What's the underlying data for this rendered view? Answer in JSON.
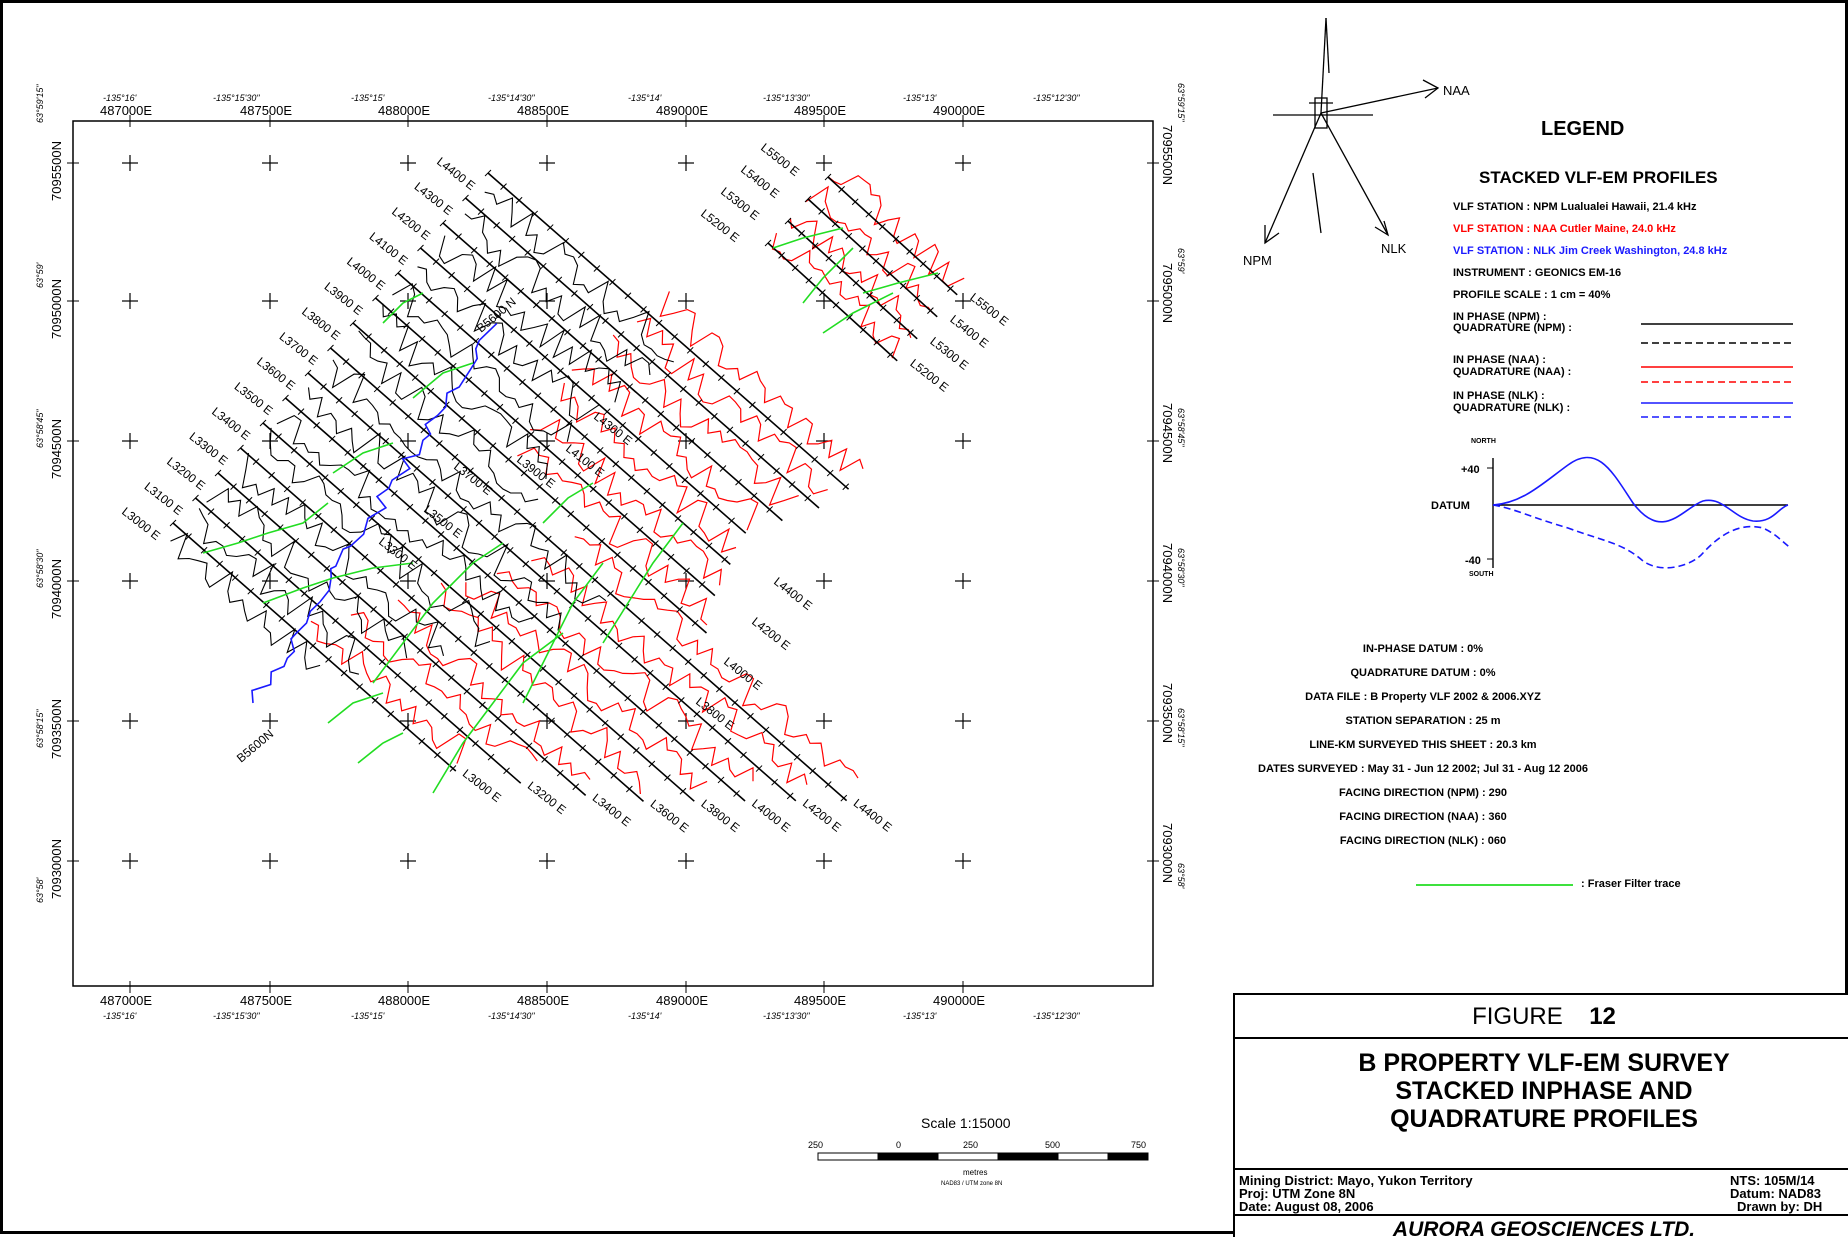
{
  "map": {
    "top_eastings": [
      "487000E",
      "487500E",
      "488000E",
      "488500E",
      "489000E",
      "489500E",
      "490000E"
    ],
    "bottom_eastings": [
      "487000E",
      "487500E",
      "488000E",
      "488500E",
      "489000E",
      "489500E",
      "490000E"
    ],
    "top_longitudes": [
      "-135°16'",
      "-135°15'30\"",
      "-135°15'",
      "-135°14'30\"",
      "-135°14'",
      "-135°13'30\"",
      "-135°13'",
      "-135°12'30\""
    ],
    "bottom_longitudes": [
      "-135°16'",
      "-135°15'30\"",
      "-135°15'",
      "-135°14'30\"",
      "-135°14'",
      "-135°13'30\"",
      "-135°13'",
      "-135°12'30\""
    ],
    "northings": [
      "7095500N",
      "7095000N",
      "7094500N",
      "7094000N",
      "7093500N",
      "7093000N"
    ],
    "left_latitudes": [
      "63°59'15\"",
      "63°59'",
      "63°58'45\"",
      "63°58'30\"",
      "63°58'15\"",
      "63°58'"
    ],
    "right_latitudes": [
      "63°59'15\"",
      "63°59'",
      "63°58'45\"",
      "63°58'30\"",
      "63°58'15\"",
      "63°58'"
    ],
    "main_lines": [
      {
        "start": "L3000 E",
        "end": "L3000 E"
      },
      {
        "start": "L3100 E",
        "end": "L3200 E"
      },
      {
        "start": "L3200 E",
        "end": "L3400 E"
      },
      {
        "start": "L3300 E",
        "end": "L3600 E"
      },
      {
        "start": "L3400 E",
        "end": "L3800 E"
      },
      {
        "start": "L3500 E",
        "end": "L4000 E"
      },
      {
        "start": "L3600 E",
        "end": "L4200 E"
      },
      {
        "start": "L3700 E",
        "end": "L4400 E"
      },
      {
        "start": "L3800 E",
        "end": ""
      },
      {
        "start": "L3900 E",
        "end": ""
      },
      {
        "start": "L4000 E",
        "end": ""
      },
      {
        "start": "L4100 E",
        "end": ""
      },
      {
        "start": "L4200 E",
        "end": ""
      },
      {
        "start": "L4300 E",
        "end": ""
      },
      {
        "start": "L4400 E",
        "end": ""
      }
    ],
    "ne_lines": [
      {
        "start": "L5200 E",
        "end": "L5200 E"
      },
      {
        "start": "L5300 E",
        "end": "L5300 E"
      },
      {
        "start": "L5400 E",
        "end": "L5400 E"
      },
      {
        "start": "L5500 E",
        "end": "L5500 E"
      }
    ],
    "inner_labels": [
      "L4300 E",
      "L4100 E",
      "L3900 E",
      "L3700 E",
      "L3500 E",
      "L3300 E"
    ],
    "baseline_top": "B5600 N",
    "baseline_bottom": "B5600N",
    "station_tag": "5500 N"
  },
  "north_arrow": {
    "naa": "NAA",
    "npm": "NPM",
    "nlk": "NLK"
  },
  "legend": {
    "title": "LEGEND",
    "subtitle": "STACKED VLF-EM PROFILES",
    "vlf_npm": "VLF STATION : NPM Lualualei Hawaii, 21.4 kHz",
    "vlf_naa": "VLF STATION : NAA Cutler Maine, 24.0 kHz",
    "vlf_nlk": "VLF STATION : NLK Jim Creek Washington, 24.8 kHz",
    "instrument": "INSTRUMENT : GEONICS EM-16",
    "profile_scale": "PROFILE SCALE : 1 cm = 40%",
    "ip_npm": "IN PHASE (NPM) :",
    "qd_npm": "QUADRATURE (NPM) :",
    "ip_naa": "IN PHASE (NAA) :",
    "qd_naa": "QUADRATURE (NAA) :",
    "ip_nlk": "IN PHASE (NLK) :",
    "qd_nlk": "QUADRATURE (NLK) :",
    "north": "NORTH",
    "south": "SOUTH",
    "plus40": "+40",
    "minus40": "-40",
    "datum": "DATUM",
    "colors": {
      "npm": "#000000",
      "naa": "#ff0000",
      "nlk": "#1a1aff",
      "fraser": "#22dd22"
    }
  },
  "info": [
    "IN-PHASE DATUM : 0%",
    "QUADRATURE DATUM : 0%",
    "DATA FILE : B Property VLF 2002 & 2006.XYZ",
    "STATION SEPARATION : 25 m",
    "LINE-KM SURVEYED THIS SHEET : 20.3 km",
    "DATES SURVEYED : May 31 - Jun 12 2002; Jul 31 - Aug 12 2006",
    "FACING DIRECTION (NPM) : 290",
    "FACING DIRECTION (NAA) : 360",
    "FACING DIRECTION (NLK) : 060"
  ],
  "fraser_label": ": Fraser Filter trace",
  "scale": {
    "title": "Scale 1:15000",
    "ticks": [
      "250",
      "0",
      "250",
      "500",
      "750"
    ],
    "units": "metres",
    "projection": "NAD83 / UTM zone 8N"
  },
  "title_block": {
    "figure_word": "FIGURE",
    "figure_number": "12",
    "title_lines": [
      "B PROPERTY VLF-EM SURVEY",
      "STACKED INPHASE AND",
      "QUADRATURE PROFILES"
    ],
    "district": "Mining District: Mayo, Yukon Territory",
    "proj": "Proj: UTM Zone 8N",
    "date": "Date: August 08, 2006",
    "nts": "NTS: 105M/14",
    "datum": "Datum: NAD83",
    "drawn": "Drawn by: DH",
    "company": "AURORA GEOSCIENCES LTD."
  }
}
